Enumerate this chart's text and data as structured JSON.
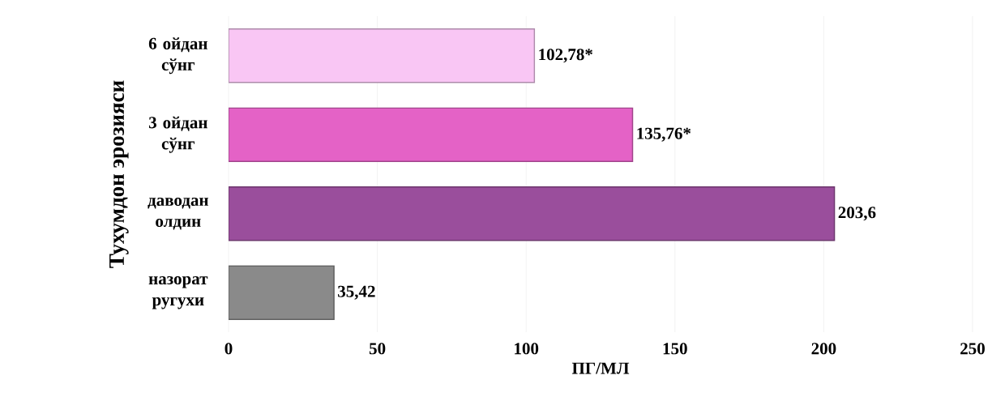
{
  "chart_data": {
    "type": "bar",
    "orientation": "horizontal",
    "xlabel": "ПГ/МЛ",
    "ylabel": "Тухумдон эрозияси",
    "categories": [
      "6 ойдан сўнг",
      "3 ойдан сўнг",
      "даводан олдин",
      "назорат ругухи"
    ],
    "values": [
      102.78,
      135.76,
      203.6,
      35.42
    ],
    "value_labels": [
      "102,78*",
      "135,76*",
      "203,6",
      "35,42"
    ],
    "colors": [
      "#f9c6f4",
      "#e462c6",
      "#9a4e9c",
      "#8a8a8a"
    ],
    "xlim": [
      0,
      250
    ],
    "xticks": [
      0,
      50,
      100,
      150,
      200,
      250
    ],
    "grid": "x"
  }
}
